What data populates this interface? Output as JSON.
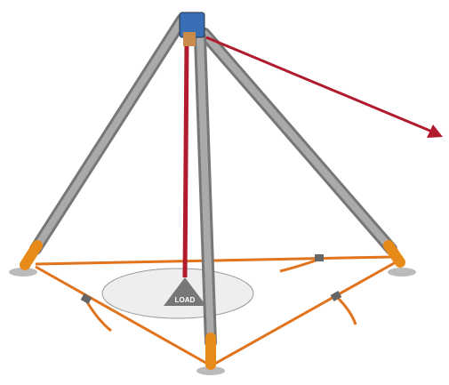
{
  "load_label": "LOAD"
}
